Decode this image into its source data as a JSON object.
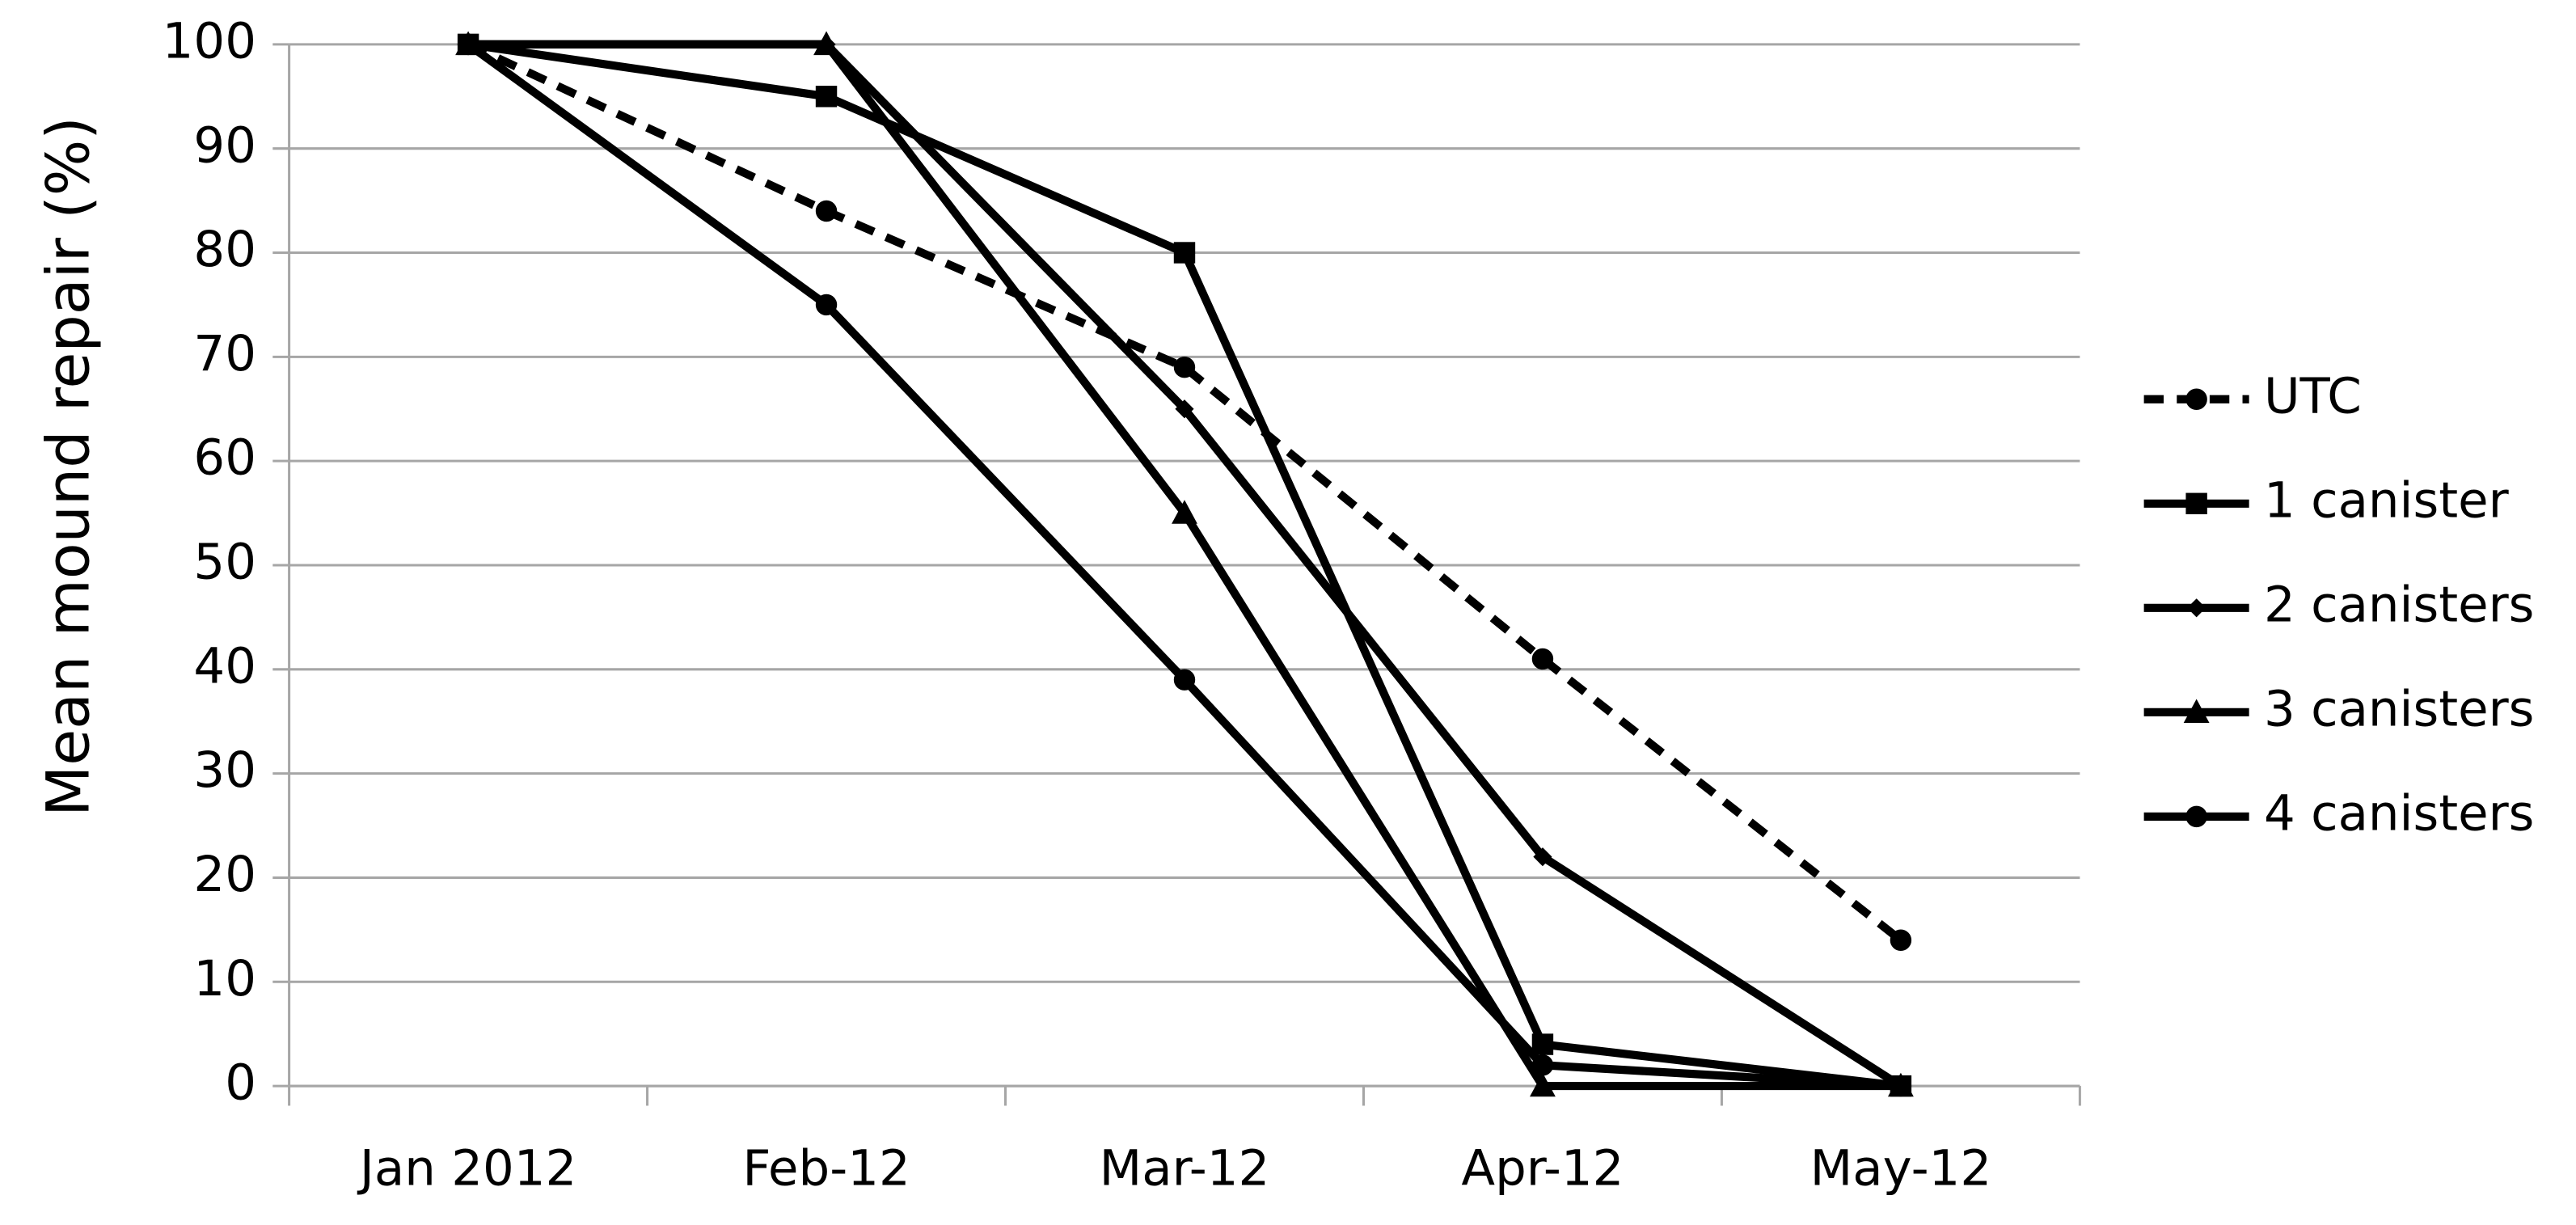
{
  "chart_data": {
    "type": "line",
    "y_label": "Mean mound repair (%)",
    "categories": [
      "Jan 2012",
      "Feb-12",
      "Mar-12",
      "Apr-12",
      "May-12"
    ],
    "series": [
      {
        "name": "UTC",
        "color": "#000000",
        "marker": "circle",
        "dashed": true,
        "values": [
          100,
          84,
          69,
          41,
          14
        ]
      },
      {
        "name": "1 canister",
        "color": "#000000",
        "marker": "square",
        "dashed": false,
        "values": [
          100,
          95,
          80,
          4,
          0
        ]
      },
      {
        "name": "2 canisters",
        "color": "#000000",
        "marker": "diamond",
        "dashed": false,
        "values": [
          100,
          100,
          65,
          22,
          0
        ]
      },
      {
        "name": "3 canisters",
        "color": "#000000",
        "marker": "triangle",
        "dashed": false,
        "values": [
          100,
          100,
          55,
          0,
          0
        ]
      },
      {
        "name": "4 canisters",
        "color": "#000000",
        "marker": "circle",
        "dashed": false,
        "values": [
          100,
          75,
          39,
          2,
          0
        ]
      }
    ],
    "ylim": [
      0,
      100
    ],
    "yticks": [
      0,
      10,
      20,
      30,
      40,
      50,
      60,
      70,
      80,
      90,
      100
    ],
    "grid": true,
    "legend": "right"
  }
}
